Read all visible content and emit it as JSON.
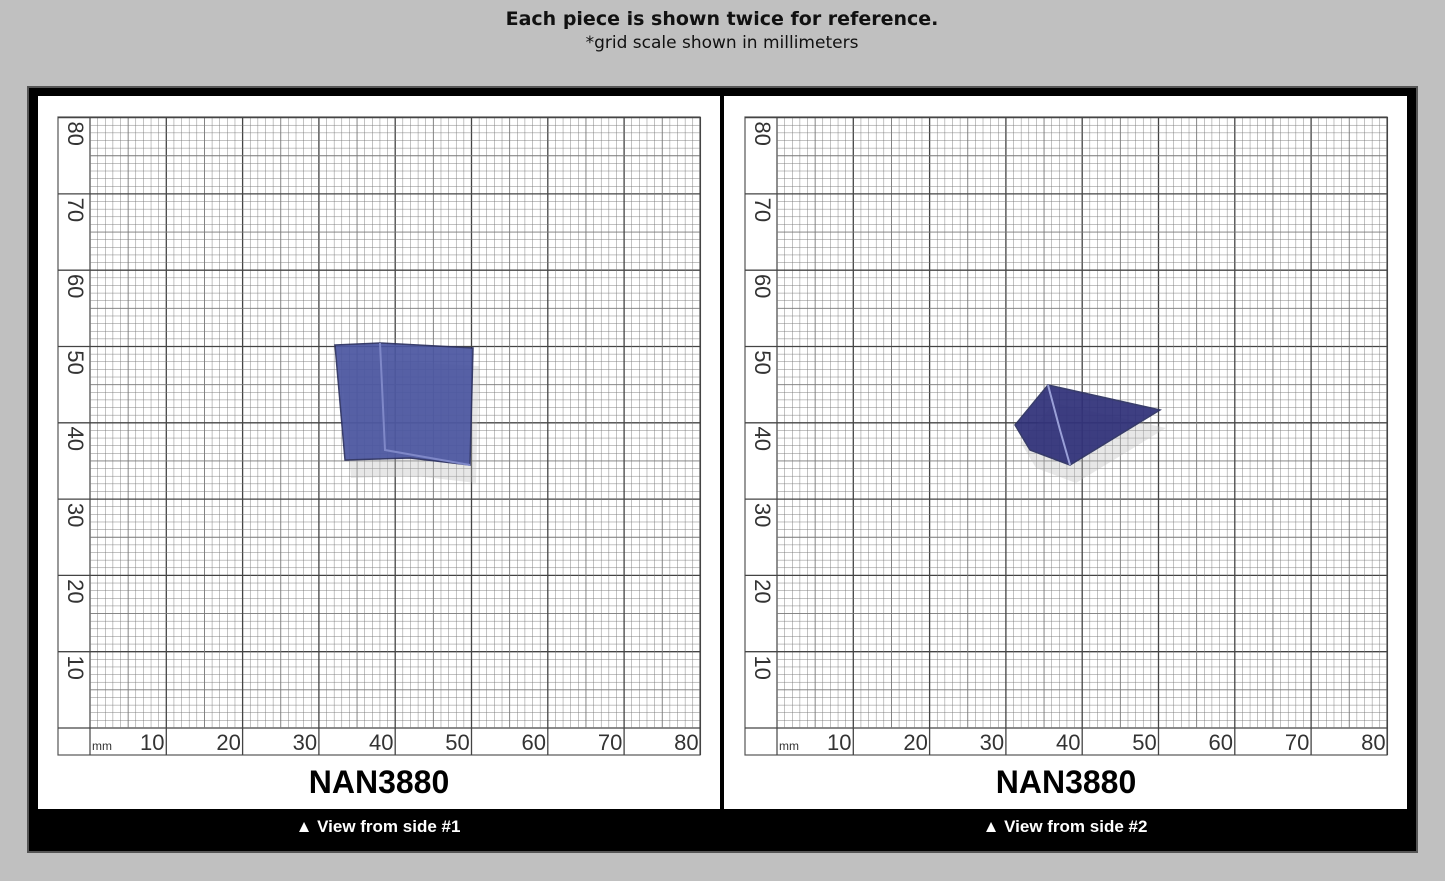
{
  "header": {
    "title": "Each piece is shown twice for reference.",
    "subtitle": "*grid scale shown in millimeters"
  },
  "panels": [
    {
      "grid": {
        "unit": "mm",
        "x_labels": [
          "10",
          "20",
          "30",
          "40",
          "50",
          "60",
          "70",
          "80"
        ],
        "y_labels": [
          "10",
          "20",
          "30",
          "40",
          "50",
          "60",
          "70",
          "80"
        ]
      },
      "specimen_id": "NAN3880",
      "caption": "▲ View from side #1"
    },
    {
      "grid": {
        "unit": "mm",
        "x_labels": [
          "10",
          "20",
          "30",
          "40",
          "50",
          "60",
          "70",
          "80"
        ],
        "y_labels": [
          "10",
          "20",
          "30",
          "40",
          "50",
          "60",
          "70",
          "80"
        ]
      },
      "specimen_id": "NAN3880",
      "caption": "▲ View from side #2"
    }
  ]
}
